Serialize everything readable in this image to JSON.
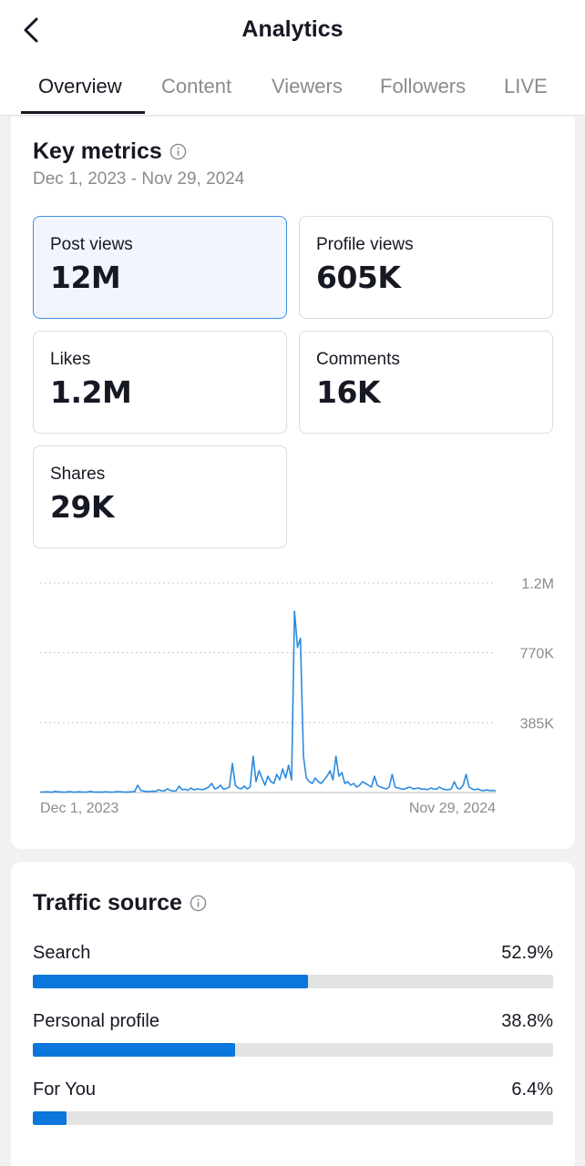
{
  "header": {
    "title": "Analytics",
    "back_icon": "chevron-left-icon"
  },
  "tabs": [
    {
      "label": "Overview",
      "active": true
    },
    {
      "label": "Content",
      "active": false
    },
    {
      "label": "Viewers",
      "active": false
    },
    {
      "label": "Followers",
      "active": false
    },
    {
      "label": "LIVE",
      "active": false
    }
  ],
  "key_metrics": {
    "title": "Key metrics",
    "date_range": "Dec 1, 2023 - Nov 29, 2024",
    "items": [
      {
        "label": "Post views",
        "value": "12M",
        "selected": true
      },
      {
        "label": "Profile views",
        "value": "605K",
        "selected": false
      },
      {
        "label": "Likes",
        "value": "1.2M",
        "selected": false
      },
      {
        "label": "Comments",
        "value": "16K",
        "selected": false
      },
      {
        "label": "Shares",
        "value": "29K",
        "selected": false
      }
    ]
  },
  "chart_data": {
    "type": "line",
    "title": "",
    "xlabel": "",
    "ylabel": "",
    "x_tick_labels": [
      "Dec 1, 2023",
      "Nov 29, 2024"
    ],
    "y_tick_labels": [
      "385K",
      "770K",
      "1.2M"
    ],
    "y_ticks": [
      385000,
      770000,
      1155000
    ],
    "ylim": [
      0,
      1155000
    ],
    "grid": true,
    "line_color": "#2a8ae0",
    "series": [
      {
        "values": [
          3000,
          2000,
          4000,
          3000,
          2000,
          6000,
          4000,
          3000,
          2000,
          3000,
          5000,
          3000,
          2000,
          4000,
          3000,
          2000,
          3000,
          6000,
          3000,
          2000,
          3000,
          2000,
          4000,
          3000,
          2000,
          3000,
          5000,
          4000,
          3000,
          2000,
          3000,
          4000,
          6000,
          40000,
          12000,
          8000,
          6000,
          5000,
          8000,
          6000,
          15000,
          10000,
          9000,
          20000,
          12000,
          8000,
          10000,
          35000,
          15000,
          18000,
          12000,
          25000,
          14000,
          20000,
          18000,
          15000,
          22000,
          30000,
          50000,
          20000,
          25000,
          40000,
          18000,
          22000,
          30000,
          160000,
          40000,
          25000,
          20000,
          35000,
          20000,
          30000,
          200000,
          60000,
          120000,
          80000,
          40000,
          90000,
          60000,
          50000,
          100000,
          70000,
          130000,
          80000,
          150000,
          70000,
          1000000,
          800000,
          850000,
          200000,
          80000,
          60000,
          50000,
          80000,
          60000,
          50000,
          70000,
          90000,
          120000,
          70000,
          200000,
          90000,
          110000,
          50000,
          60000,
          40000,
          50000,
          30000,
          40000,
          60000,
          50000,
          40000,
          30000,
          90000,
          40000,
          30000,
          25000,
          20000,
          30000,
          100000,
          30000,
          25000,
          20000,
          18000,
          25000,
          30000,
          20000,
          22000,
          25000,
          18000,
          20000,
          15000,
          25000,
          20000,
          18000,
          30000,
          20000,
          16000,
          15000,
          20000,
          60000,
          25000,
          20000,
          40000,
          100000,
          30000,
          20000,
          15000,
          20000,
          12000,
          10000,
          15000,
          10000,
          12000,
          8000
        ]
      }
    ]
  },
  "traffic_source": {
    "title": "Traffic source",
    "items": [
      {
        "label": "Search",
        "percent_label": "52.9%",
        "percent": 52.9
      },
      {
        "label": "Personal profile",
        "percent_label": "38.8%",
        "percent": 38.8
      },
      {
        "label": "For You",
        "percent_label": "6.4%",
        "percent": 6.4
      }
    ]
  },
  "colors": {
    "accent": "#0b76db",
    "selected_border": "#3b8ee8",
    "selected_bg": "#f1f6fd"
  }
}
